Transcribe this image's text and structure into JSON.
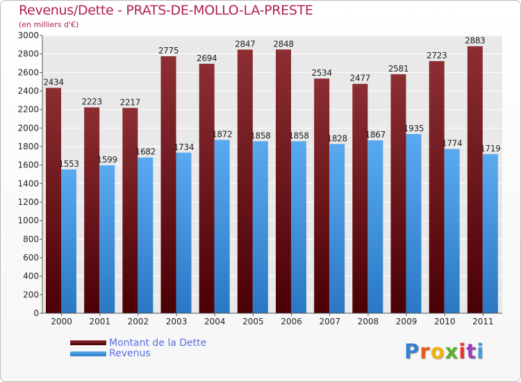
{
  "title": "Revenus/Dette - PRATS-DE-MOLLO-LA-PRESTE",
  "subtitle": "(en milliers d'€)",
  "logo": {
    "text": "Proxiti",
    "colors": [
      "#3a7fd0",
      "#e85a1a",
      "#f2b211",
      "#5bb031",
      "#e8352a",
      "#9a3fb8",
      "#3a9fd8"
    ]
  },
  "colors": {
    "dette": "#7a1e24",
    "revenus": "#4a9ae6"
  },
  "legend": {
    "dette": "Montant de la Dette",
    "revenus": "Revenus"
  },
  "chart_data": {
    "type": "bar",
    "categories": [
      "2000",
      "2001",
      "2002",
      "2003",
      "2004",
      "2005",
      "2006",
      "2007",
      "2008",
      "2009",
      "2010",
      "2011"
    ],
    "series": [
      {
        "name": "Montant de la Dette",
        "values": [
          2434,
          2223,
          2217,
          2775,
          2694,
          2847,
          2848,
          2534,
          2477,
          2581,
          2723,
          2883
        ]
      },
      {
        "name": "Revenus",
        "values": [
          1553,
          1599,
          1682,
          1734,
          1872,
          1858,
          1858,
          1828,
          1867,
          1935,
          1774,
          1719
        ]
      }
    ],
    "yticks": [
      "0",
      "200",
      "400",
      "600",
      "800",
      "1000",
      "1200",
      "1400",
      "1600",
      "1800",
      "2000",
      "2200",
      "2400",
      "2600",
      "2800",
      "3000"
    ],
    "ylim": [
      0,
      3000
    ],
    "grid": true,
    "legend_position": "bottom-left"
  }
}
